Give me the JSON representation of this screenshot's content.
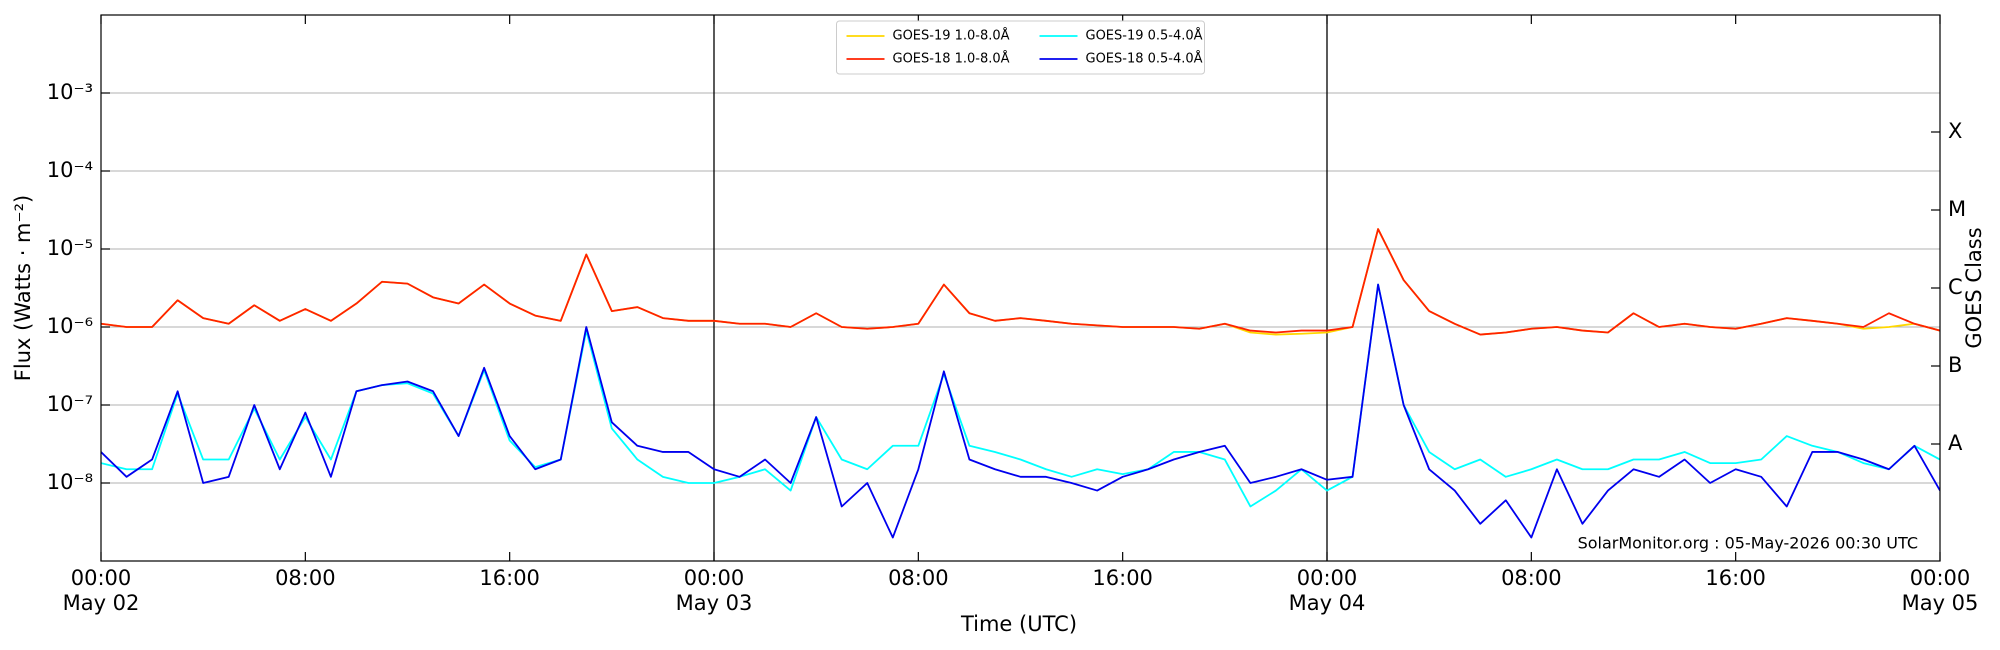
{
  "chart_data": {
    "type": "line",
    "x_label": "Time (UTC)",
    "y_label": "Flux (Watts · m⁻²)",
    "y2_label": "GOES Class",
    "annotation": "SolarMonitor.org : 05-May-2026 00:30 UTC",
    "yscale": "log",
    "grid": true,
    "legend": "upper center",
    "x": [
      "May 02 00:00",
      "May 02 01:00",
      "May 02 02:00",
      "May 02 03:00",
      "May 02 04:00",
      "May 02 05:00",
      "May 02 06:00",
      "May 02 07:00",
      "May 02 08:00",
      "May 02 09:00",
      "May 02 10:00",
      "May 02 11:00",
      "May 02 12:00",
      "May 02 13:00",
      "May 02 14:00",
      "May 02 15:00",
      "May 02 16:00",
      "May 02 17:00",
      "May 02 18:00",
      "May 02 19:00",
      "May 02 20:00",
      "May 02 21:00",
      "May 02 22:00",
      "May 02 23:00",
      "May 03 00:00",
      "May 03 01:00",
      "May 03 02:00",
      "May 03 03:00",
      "May 03 04:00",
      "May 03 05:00",
      "May 03 06:00",
      "May 03 07:00",
      "May 03 08:00",
      "May 03 09:00",
      "May 03 10:00",
      "May 03 11:00",
      "May 03 12:00",
      "May 03 13:00",
      "May 03 14:00",
      "May 03 15:00",
      "May 03 16:00",
      "May 03 17:00",
      "May 03 18:00",
      "May 03 19:00",
      "May 03 20:00",
      "May 03 21:00",
      "May 03 22:00",
      "May 03 23:00",
      "May 04 00:00",
      "May 04 01:00",
      "May 04 02:00",
      "May 04 03:00",
      "May 04 04:00",
      "May 04 05:00",
      "May 04 06:00",
      "May 04 07:00",
      "May 04 08:00",
      "May 04 09:00",
      "May 04 10:00",
      "May 04 11:00",
      "May 04 12:00",
      "May 04 13:00",
      "May 04 14:00",
      "May 04 15:00",
      "May 04 16:00",
      "May 04 17:00",
      "May 04 18:00",
      "May 04 19:00",
      "May 04 20:00",
      "May 04 21:00",
      "May 04 22:00",
      "May 04 23:00",
      "May 05 00:00"
    ],
    "series": [
      {
        "name": "GOES-19 1.0-8.0Å",
        "color": "#ffd700",
        "values": [
          1.1e-06,
          1e-06,
          1e-06,
          2.2e-06,
          1.3e-06,
          1.1e-06,
          1.9e-06,
          1.2e-06,
          1.7e-06,
          1.2e-06,
          2e-06,
          3.8e-06,
          3.6e-06,
          2.4e-06,
          2e-06,
          3.5e-06,
          2e-06,
          1.4e-06,
          1.2e-06,
          8.5e-06,
          1.6e-06,
          1.8e-06,
          1.3e-06,
          1.2e-06,
          1.2e-06,
          1.1e-06,
          1.1e-06,
          1e-06,
          1.5e-06,
          1e-06,
          9.5e-07,
          1e-06,
          1.1e-06,
          3.5e-06,
          1.5e-06,
          1.2e-06,
          1.3e-06,
          1.2e-06,
          1.1e-06,
          1.05e-06,
          1e-06,
          1e-06,
          1e-06,
          9.5e-07,
          1.1e-06,
          8.5e-07,
          8e-07,
          8.2e-07,
          8.5e-07,
          1e-06,
          1.8e-05,
          4e-06,
          1.6e-06,
          1.1e-06,
          8e-07,
          8.5e-07,
          9.5e-07,
          1e-06,
          9e-07,
          8.5e-07,
          1.5e-06,
          1e-06,
          1.1e-06,
          1e-06,
          9.5e-07,
          1.1e-06,
          1.3e-06,
          1.2e-06,
          1.1e-06,
          9.5e-07,
          1e-06,
          1.1e-06,
          9e-07
        ]
      },
      {
        "name": "GOES-18 1.0-8.0Å",
        "color": "#ff2200",
        "values": [
          1.1e-06,
          1e-06,
          1e-06,
          2.2e-06,
          1.3e-06,
          1.1e-06,
          1.9e-06,
          1.2e-06,
          1.7e-06,
          1.2e-06,
          2e-06,
          3.8e-06,
          3.6e-06,
          2.4e-06,
          2e-06,
          3.5e-06,
          2e-06,
          1.4e-06,
          1.2e-06,
          8.5e-06,
          1.6e-06,
          1.8e-06,
          1.3e-06,
          1.2e-06,
          1.2e-06,
          1.1e-06,
          1.1e-06,
          1e-06,
          1.5e-06,
          1e-06,
          9.5e-07,
          1e-06,
          1.1e-06,
          3.5e-06,
          1.5e-06,
          1.2e-06,
          1.3e-06,
          1.2e-06,
          1.1e-06,
          1.05e-06,
          1e-06,
          1e-06,
          1e-06,
          9.5e-07,
          1.1e-06,
          9e-07,
          8.5e-07,
          9e-07,
          9e-07,
          1e-06,
          1.8e-05,
          4e-06,
          1.6e-06,
          1.1e-06,
          8e-07,
          8.5e-07,
          9.5e-07,
          1e-06,
          9e-07,
          8.5e-07,
          1.5e-06,
          1e-06,
          1.1e-06,
          1e-06,
          9.5e-07,
          1.1e-06,
          1.3e-06,
          1.2e-06,
          1.1e-06,
          1e-06,
          1.5e-06,
          1.1e-06,
          9e-07
        ]
      },
      {
        "name": "GOES-19 0.5-4.0Å",
        "color": "#00ffff",
        "values": [
          1.8e-08,
          1.5e-08,
          1.5e-08,
          1.4e-07,
          2e-08,
          2e-08,
          9e-08,
          2e-08,
          7e-08,
          2e-08,
          1.5e-07,
          1.8e-07,
          1.9e-07,
          1.4e-07,
          4e-08,
          2.8e-07,
          3.5e-08,
          1.6e-08,
          2e-08,
          9e-07,
          5e-08,
          2e-08,
          1.2e-08,
          1e-08,
          1e-08,
          1.2e-08,
          1.5e-08,
          8e-09,
          7e-08,
          2e-08,
          1.5e-08,
          3e-08,
          3e-08,
          2.5e-07,
          3e-08,
          2.5e-08,
          2e-08,
          1.5e-08,
          1.2e-08,
          1.5e-08,
          1.3e-08,
          1.5e-08,
          2.5e-08,
          2.5e-08,
          2e-08,
          5e-09,
          8e-09,
          1.5e-08,
          8e-09,
          1.2e-08,
          3.5e-06,
          1e-07,
          2.5e-08,
          1.5e-08,
          2e-08,
          1.2e-08,
          1.5e-08,
          2e-08,
          1.5e-08,
          1.5e-08,
          2e-08,
          2e-08,
          2.5e-08,
          1.8e-08,
          1.8e-08,
          2e-08,
          4e-08,
          3e-08,
          2.5e-08,
          1.8e-08,
          1.5e-08,
          3e-08,
          2e-08
        ]
      },
      {
        "name": "GOES-18 0.5-4.0Å",
        "color": "#0000ee",
        "values": [
          2.5e-08,
          1.2e-08,
          2e-08,
          1.5e-07,
          1e-08,
          1.2e-08,
          1e-07,
          1.5e-08,
          8e-08,
          1.2e-08,
          1.5e-07,
          1.8e-07,
          2e-07,
          1.5e-07,
          4e-08,
          3e-07,
          4e-08,
          1.5e-08,
          2e-08,
          1e-06,
          6e-08,
          3e-08,
          2.5e-08,
          2.5e-08,
          1.5e-08,
          1.2e-08,
          2e-08,
          1e-08,
          7e-08,
          5e-09,
          1e-08,
          2e-09,
          1.5e-08,
          2.7e-07,
          2e-08,
          1.5e-08,
          1.2e-08,
          1.2e-08,
          1e-08,
          8e-09,
          1.2e-08,
          1.5e-08,
          2e-08,
          2.5e-08,
          3e-08,
          1e-08,
          1.2e-08,
          1.5e-08,
          1.1e-08,
          1.2e-08,
          3.5e-06,
          1e-07,
          1.5e-08,
          8e-09,
          3e-09,
          6e-09,
          2e-09,
          1.5e-08,
          3e-09,
          8e-09,
          1.5e-08,
          1.2e-08,
          2e-08,
          1e-08,
          1.5e-08,
          1.2e-08,
          5e-09,
          2.5e-08,
          2.5e-08,
          2e-08,
          1.5e-08,
          3e-08,
          8e-09
        ]
      }
    ],
    "xlim": [
      "May 02 00:00",
      "May 05 00:00"
    ],
    "xticks": [
      {
        "value": "May 02 00:00",
        "label": [
          "00:00",
          "May 02"
        ]
      },
      {
        "value": "May 02 08:00",
        "label": "08:00"
      },
      {
        "value": "May 02 16:00",
        "label": "16:00"
      },
      {
        "value": "May 03 00:00",
        "label": [
          "00:00",
          "May 03"
        ]
      },
      {
        "value": "May 03 08:00",
        "label": "08:00"
      },
      {
        "value": "May 03 16:00",
        "label": "16:00"
      },
      {
        "value": "May 04 00:00",
        "label": [
          "00:00",
          "May 04"
        ]
      },
      {
        "value": "May 04 08:00",
        "label": "08:00"
      },
      {
        "value": "May 04 16:00",
        "label": "16:00"
      },
      {
        "value": "May 05 00:00",
        "label": [
          "00:00",
          "May 05"
        ]
      }
    ],
    "vlines": [
      "May 03 00:00",
      "May 04 00:00"
    ],
    "ylim": [
      1e-09,
      0.01
    ],
    "yticks": [
      {
        "value": 1e-08,
        "label": "10⁻⁸"
      },
      {
        "value": 1e-07,
        "label": "10⁻⁷"
      },
      {
        "value": 1e-06,
        "label": "10⁻⁶"
      },
      {
        "value": 1e-05,
        "label": "10⁻⁵"
      },
      {
        "value": 0.0001,
        "label": "10⁻⁴"
      },
      {
        "value": 0.001,
        "label": "10⁻³"
      }
    ],
    "y2lim": [
      1e-09,
      0.01
    ],
    "y2ticks": [
      {
        "value": 3.1623e-08,
        "label": "A"
      },
      {
        "value": 3.1623e-07,
        "label": "B"
      },
      {
        "value": 3.1623e-06,
        "label": "C"
      },
      {
        "value": 3.1623e-05,
        "label": "M"
      },
      {
        "value": 0.00031623,
        "label": "X"
      }
    ]
  }
}
